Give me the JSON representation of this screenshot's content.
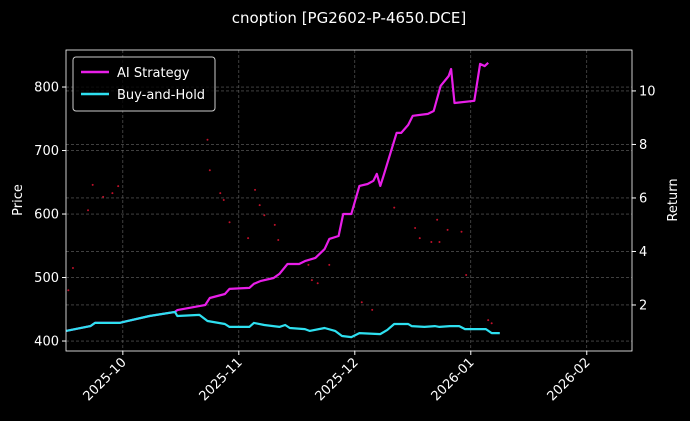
{
  "chart_data": {
    "type": "line",
    "title": "cnoption [PG2602-P-4650.DCE]",
    "ylabel": "Price",
    "y2label": "Return",
    "grid": true,
    "legend": "upper left",
    "xlim": [
      -0.49,
      4.39
    ],
    "xticks": [
      {
        "value": 0,
        "label": "2025-10"
      },
      {
        "value": 1,
        "label": "2025-11"
      },
      {
        "value": 2,
        "label": "2025-12"
      },
      {
        "value": 3,
        "label": "2026-01"
      },
      {
        "value": 4,
        "label": "2026-02"
      }
    ],
    "ylim": [
      384.3,
      858.3
    ],
    "yticks": [
      400,
      500,
      600,
      700,
      800
    ],
    "y2lim": [
      0.28,
      11.53
    ],
    "y2ticks": [
      2,
      4,
      6,
      8,
      10
    ],
    "series": [
      {
        "name": "AI Strategy",
        "color": "#e81ee8",
        "axis": "y2",
        "x": [
          -0.49,
          -0.28,
          -0.24,
          -0.03,
          0.23,
          0.45,
          0.47,
          0.66,
          0.71,
          0.75,
          0.88,
          0.92,
          1.09,
          1.13,
          1.19,
          1.3,
          1.35,
          1.42,
          1.52,
          1.57,
          1.66,
          1.74,
          1.78,
          1.86,
          1.9,
          1.97,
          2.04,
          2.11,
          2.16,
          2.19,
          2.22,
          2.25,
          2.36,
          2.4,
          2.46,
          2.5,
          2.63,
          2.68,
          2.74,
          2.81,
          2.83,
          2.86,
          3.03,
          3.08,
          3.12,
          3.15
        ],
        "values": [
          1.03,
          1.21,
          1.33,
          1.33,
          1.59,
          1.74,
          1.81,
          1.96,
          2.0,
          2.26,
          2.41,
          2.6,
          2.64,
          2.79,
          2.9,
          3.01,
          3.16,
          3.53,
          3.53,
          3.64,
          3.76,
          4.09,
          4.47,
          4.58,
          5.4,
          5.4,
          6.45,
          6.52,
          6.64,
          6.9,
          6.45,
          6.86,
          8.43,
          8.43,
          8.73,
          9.07,
          9.14,
          9.25,
          10.19,
          10.56,
          10.82,
          9.55,
          9.63,
          11.01,
          10.93,
          11.05
        ]
      },
      {
        "name": "Buy-and-Hold",
        "color": "#2ee0f0",
        "axis": "y2",
        "x": [
          -0.49,
          -0.28,
          -0.24,
          -0.03,
          0.23,
          0.45,
          0.47,
          0.66,
          0.73,
          0.88,
          0.92,
          1.09,
          1.13,
          1.22,
          1.35,
          1.4,
          1.44,
          1.57,
          1.61,
          1.74,
          1.83,
          1.89,
          1.97,
          2.04,
          2.22,
          2.28,
          2.34,
          2.46,
          2.49,
          2.6,
          2.69,
          2.73,
          2.82,
          2.9,
          2.95,
          3.13,
          3.18,
          3.25
        ],
        "values": [
          1.03,
          1.21,
          1.33,
          1.33,
          1.59,
          1.74,
          1.59,
          1.63,
          1.4,
          1.29,
          1.18,
          1.18,
          1.33,
          1.25,
          1.18,
          1.25,
          1.14,
          1.1,
          1.03,
          1.14,
          1.03,
          0.84,
          0.8,
          0.95,
          0.91,
          1.07,
          1.29,
          1.29,
          1.21,
          1.18,
          1.21,
          1.18,
          1.21,
          1.21,
          1.1,
          1.1,
          0.95,
          0.95
        ]
      }
    ],
    "points": {
      "type": "scatter",
      "color": "#c0102a",
      "x": [
        -0.47,
        -0.43,
        -0.3,
        -0.26,
        -0.17,
        -0.09,
        -0.04,
        0.73,
        0.75,
        0.84,
        0.87,
        0.92,
        1.08,
        1.14,
        1.18,
        1.22,
        1.31,
        1.34,
        1.6,
        1.63,
        1.68,
        1.78,
        2.06,
        2.15,
        2.34,
        2.52,
        2.56,
        2.66,
        2.71,
        2.73,
        2.8,
        2.92,
        2.96,
        3.15,
        3.18
      ],
      "values": [
        480,
        515,
        606,
        646,
        627,
        633,
        644,
        717,
        669,
        633,
        622,
        587,
        562,
        638,
        614,
        598,
        583,
        559,
        520,
        496,
        491,
        520,
        461,
        449,
        610,
        578,
        562,
        556,
        591,
        556,
        575,
        572,
        504,
        433,
        428
      ]
    }
  }
}
